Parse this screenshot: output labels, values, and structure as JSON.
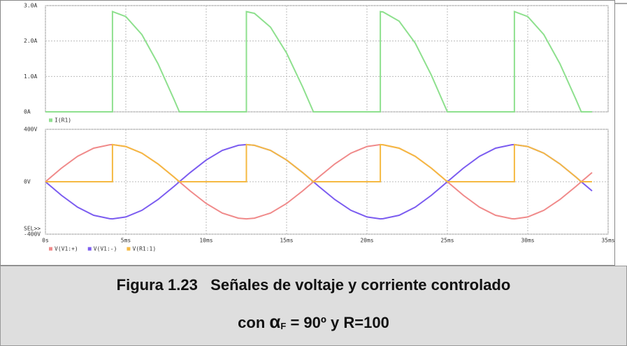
{
  "chart_data": [
    {
      "type": "line",
      "x": [
        0,
        1,
        2,
        3,
        4,
        4.17,
        4.17,
        5,
        6,
        7,
        8,
        8.33,
        9,
        10,
        11,
        12,
        12.5,
        12.5,
        13,
        14,
        15,
        16,
        16.67,
        17,
        18,
        19,
        20,
        20.83,
        20.83,
        21,
        22,
        23,
        24,
        25,
        26,
        27,
        28,
        29,
        29.17,
        29.17,
        30,
        31,
        32,
        33,
        33.33,
        34
      ],
      "xlim": [
        0,
        35
      ],
      "ylim": [
        0,
        3
      ],
      "yticks": [
        {
          "value": 0,
          "label": "0A"
        },
        {
          "value": 1,
          "label": "1.0A"
        },
        {
          "value": 2,
          "label": "2.0A"
        },
        {
          "value": 3,
          "label": "3.0A"
        }
      ],
      "grid": true,
      "series": [
        {
          "name": "I(R1)",
          "color": "#8ee08e",
          "values": [
            0,
            0,
            0,
            0,
            0,
            0,
            2.83,
            2.69,
            2.18,
            1.36,
            0.35,
            0,
            0,
            0,
            0,
            0,
            0,
            2.83,
            2.78,
            2.39,
            1.66,
            0.7,
            0,
            0,
            0,
            0,
            0,
            0,
            2.83,
            2.82,
            2.56,
            1.94,
            1.04,
            0,
            0,
            0,
            0,
            0,
            0,
            2.83,
            2.69,
            2.18,
            1.36,
            0.35,
            0,
            0
          ]
        }
      ]
    },
    {
      "type": "line",
      "x": [
        0,
        1,
        2,
        3,
        4,
        4.17,
        4.17,
        5,
        6,
        7,
        8,
        8.33,
        9,
        10,
        11,
        12,
        12.5,
        12.5,
        13,
        14,
        15,
        16,
        16.67,
        17,
        18,
        19,
        20,
        20.83,
        20.83,
        21,
        22,
        23,
        24,
        25,
        26,
        27,
        28,
        29,
        29.17,
        29.17,
        30,
        31,
        32,
        33,
        33.33,
        34
      ],
      "xlim": [
        0,
        35
      ],
      "xticks": [
        {
          "value": 0,
          "label": "0s"
        },
        {
          "value": 5,
          "label": "5ms"
        },
        {
          "value": 10,
          "label": "10ms"
        },
        {
          "value": 15,
          "label": "15ms"
        },
        {
          "value": 20,
          "label": "20ms"
        },
        {
          "value": 25,
          "label": "25ms"
        },
        {
          "value": 30,
          "label": "30ms"
        },
        {
          "value": 35,
          "label": "35ms"
        }
      ],
      "ylim": [
        -400,
        400
      ],
      "yticks": [
        {
          "value": -400,
          "label": "-400V"
        },
        {
          "value": 0,
          "label": "0V"
        },
        {
          "value": 400,
          "label": "400V"
        }
      ],
      "grid": true,
      "annotation": "SEL>>",
      "series": [
        {
          "name": "V(V1:+)",
          "color": "#f08a8a",
          "values": [
            0,
            104,
            194,
            256,
            282,
            283,
            283,
            269,
            218,
            136,
            35,
            0,
            -70,
            -166,
            -239,
            -278,
            -283,
            -283,
            -278,
            -239,
            -166,
            -70,
            0,
            35,
            136,
            218,
            269,
            283,
            283,
            282,
            256,
            194,
            104,
            0,
            -104,
            -194,
            -256,
            -282,
            -283,
            -283,
            -269,
            -218,
            -136,
            -35,
            0,
            70
          ]
        },
        {
          "name": "V(V1:-)",
          "color": "#7b5cf0",
          "values": [
            0,
            -104,
            -194,
            -256,
            -282,
            -283,
            -283,
            -269,
            -218,
            -136,
            -35,
            0,
            70,
            166,
            239,
            278,
            283,
            283,
            278,
            239,
            166,
            70,
            0,
            -35,
            -136,
            -218,
            -269,
            -283,
            -283,
            -282,
            -256,
            -194,
            -104,
            0,
            104,
            194,
            256,
            282,
            283,
            283,
            269,
            218,
            136,
            35,
            0,
            -70
          ]
        },
        {
          "name": "V(R1:1)",
          "color": "#f5b942",
          "values": [
            0,
            0,
            0,
            0,
            0,
            0,
            283,
            269,
            218,
            136,
            35,
            0,
            0,
            0,
            0,
            0,
            0,
            283,
            278,
            239,
            166,
            70,
            0,
            0,
            0,
            0,
            0,
            0,
            283,
            282,
            256,
            194,
            104,
            0,
            0,
            0,
            0,
            0,
            0,
            283,
            269,
            218,
            136,
            35,
            0,
            0
          ]
        }
      ]
    }
  ],
  "caption": {
    "label": "Figura 1.23",
    "text": "Señales de voltaje y corriente controlado",
    "line2_start": "con ",
    "alpha": "α",
    "subscript": "F",
    "line2_end": " = 90º y R=100"
  }
}
